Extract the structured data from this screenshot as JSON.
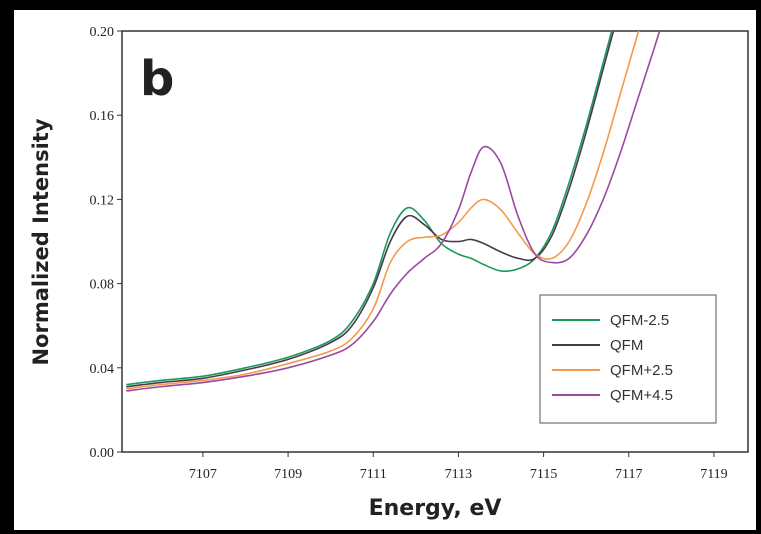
{
  "chart_data": {
    "type": "line",
    "panel_label": "b",
    "x_label": "Energy, eV",
    "y_label": "Normalized Intensity",
    "xlim": [
      7105.1,
      7119.8
    ],
    "xticks": [
      7107,
      7109,
      7111,
      7113,
      7115,
      7117,
      7119
    ],
    "ylim": [
      0,
      0.2
    ],
    "yticks": [
      {
        "value": 0,
        "label": "0.00"
      },
      0.04,
      0.08,
      0.12,
      0.16,
      {
        "value": 0.2,
        "label": "0.20"
      }
    ],
    "legend": "lower right",
    "x": [
      7105.2,
      7106,
      7107,
      7108,
      7109,
      7110,
      7110.5,
      7111,
      7111.4,
      7111.8,
      7112.2,
      7112.6,
      7113,
      7113.3,
      7113.6,
      7114,
      7114.4,
      7114.8,
      7115.2,
      7115.6,
      7116,
      7116.4,
      7116.8,
      7117.2,
      7117.6,
      7117.8
    ],
    "series": [
      {
        "name": "QFM-2.5",
        "color": "#1a9a5a",
        "values": [
          0.032,
          0.034,
          0.036,
          0.04,
          0.045,
          0.053,
          0.062,
          0.08,
          0.104,
          0.116,
          0.11,
          0.099,
          0.094,
          0.092,
          0.089,
          0.086,
          0.087,
          0.092,
          0.105,
          0.128,
          0.155,
          0.185,
          0.215,
          null,
          null,
          null
        ]
      },
      {
        "name": "QFM",
        "color": "#4a3a4a",
        "values": [
          0.031,
          0.033,
          0.035,
          0.039,
          0.044,
          0.052,
          0.06,
          0.078,
          0.1,
          0.112,
          0.108,
          0.101,
          0.1,
          0.101,
          0.099,
          0.095,
          0.092,
          0.092,
          0.103,
          0.125,
          0.152,
          0.182,
          0.212,
          null,
          null,
          null
        ]
      },
      {
        "name": "QFM+2.5",
        "color": "#f39a4a",
        "values": [
          0.03,
          0.032,
          0.034,
          0.037,
          0.042,
          0.048,
          0.054,
          0.068,
          0.09,
          0.1,
          0.102,
          0.103,
          0.109,
          0.116,
          0.12,
          0.115,
          0.104,
          0.094,
          0.092,
          0.1,
          0.118,
          0.142,
          0.17,
          0.198,
          0.225,
          null
        ]
      },
      {
        "name": "QFM+4.5",
        "color": "#9a4aa0",
        "values": [
          0.029,
          0.031,
          0.033,
          0.036,
          0.04,
          0.046,
          0.051,
          0.062,
          0.075,
          0.085,
          0.092,
          0.099,
          0.115,
          0.133,
          0.145,
          0.137,
          0.112,
          0.094,
          0.09,
          0.092,
          0.103,
          0.12,
          0.142,
          0.167,
          0.192,
          0.205
        ]
      }
    ]
  }
}
